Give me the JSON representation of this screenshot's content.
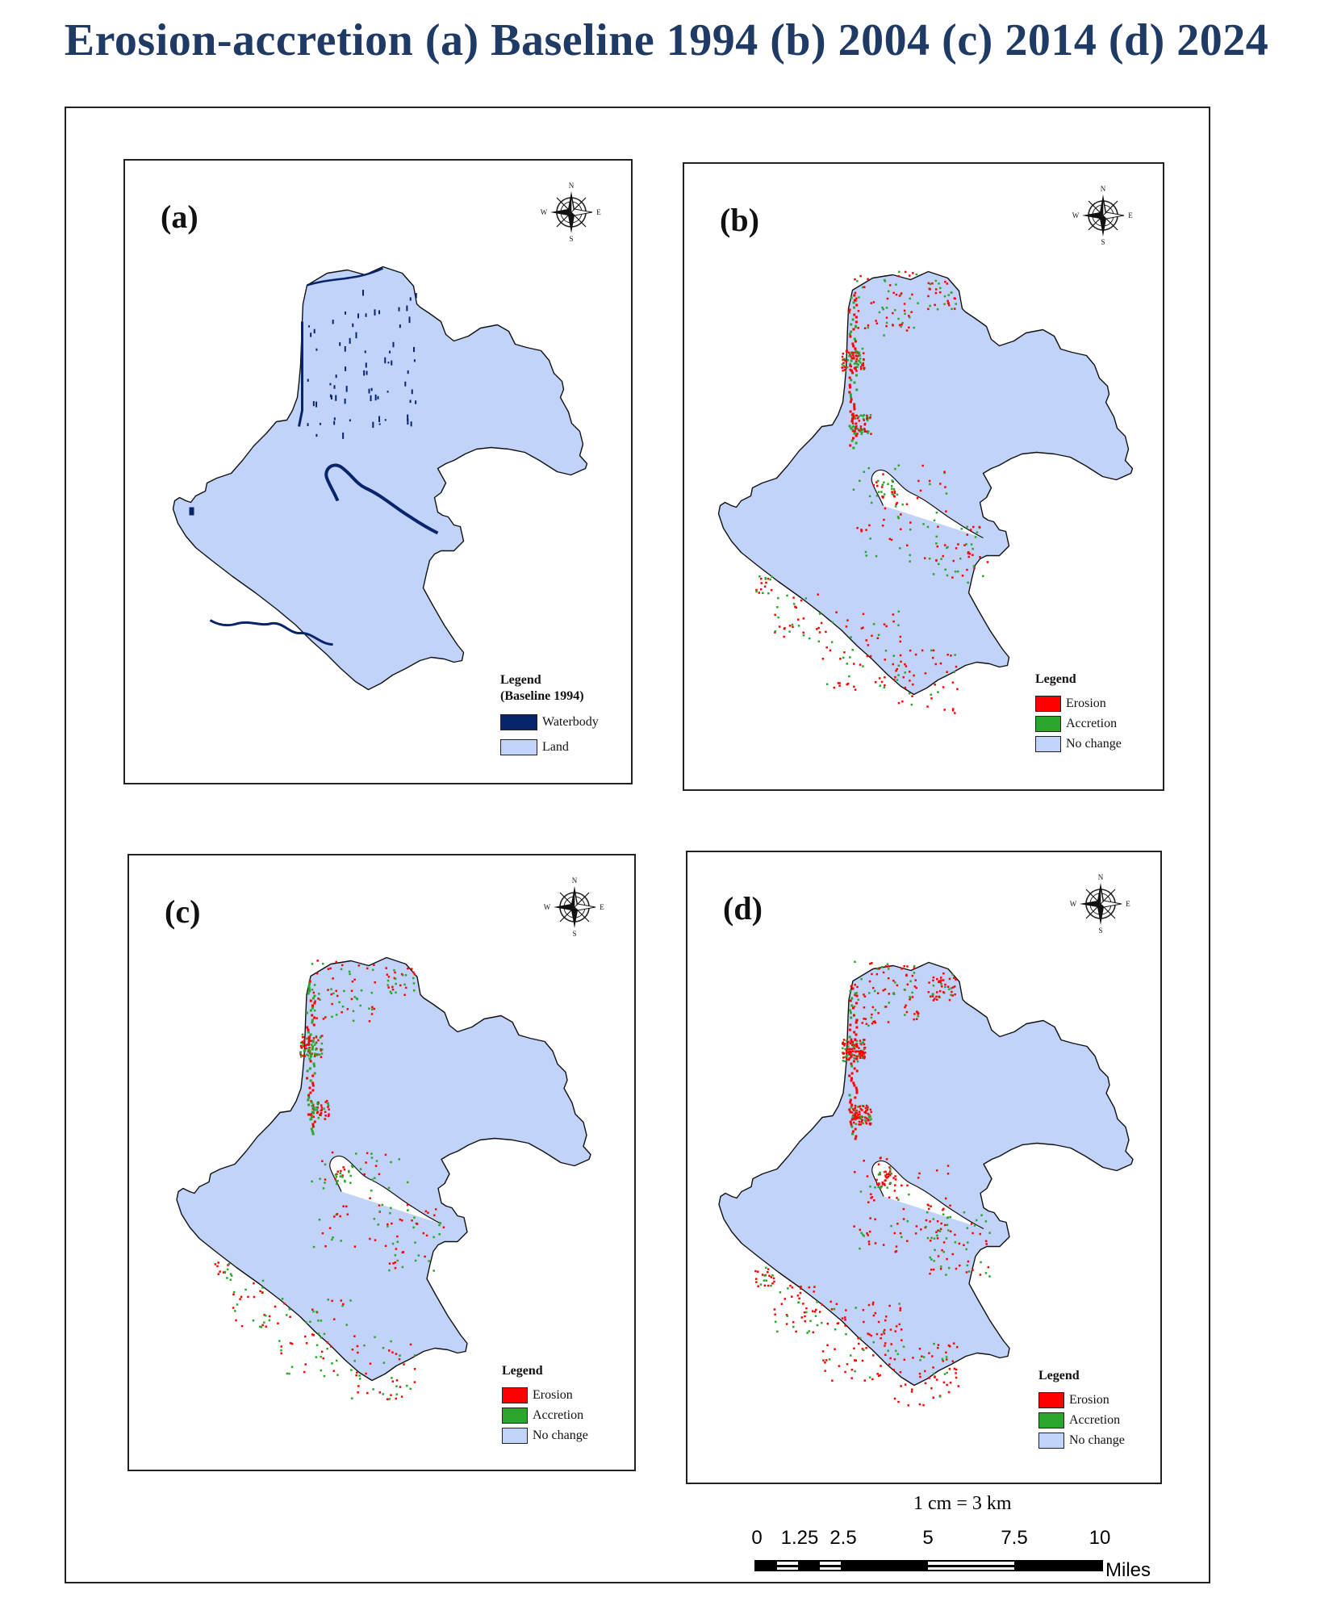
{
  "title": "Erosion-accretion (a) Baseline 1994 (b) 2004 (c) 2014 (d) 2024",
  "colors": {
    "land": "#c2d3f9",
    "waterbody": "#08246b",
    "erosion": "#ff0000",
    "accretion": "#2ba52b",
    "no_change": "#c2d3f9"
  },
  "compass": {
    "n": "N",
    "s": "S",
    "e": "E",
    "w": "W"
  },
  "panels": [
    {
      "label": "(a)",
      "legend": {
        "title": "Legend",
        "subtitle": "(Baseline 1994)",
        "items": [
          {
            "label": "Waterbody",
            "color": "#08246b"
          },
          {
            "label": "Land",
            "color": "#c2d3f9"
          }
        ]
      }
    },
    {
      "label": "(b)",
      "legend": {
        "title": "Legend",
        "items": [
          {
            "label": "Erosion",
            "color": "#ff0000"
          },
          {
            "label": "Accretion",
            "color": "#2ba52b"
          },
          {
            "label": "No change",
            "color": "#c2d3f9"
          }
        ]
      }
    },
    {
      "label": "(c)",
      "legend": {
        "title": "Legend",
        "items": [
          {
            "label": "Erosion",
            "color": "#ff0000"
          },
          {
            "label": "Accretion",
            "color": "#2ba52b"
          },
          {
            "label": "No change",
            "color": "#c2d3f9"
          }
        ]
      }
    },
    {
      "label": "(d)",
      "legend": {
        "title": "Legend",
        "items": [
          {
            "label": "Erosion",
            "color": "#ff0000"
          },
          {
            "label": "Accretion",
            "color": "#2ba52b"
          },
          {
            "label": "No change",
            "color": "#c2d3f9"
          }
        ]
      }
    }
  ],
  "scale_bar": {
    "ratio": "1 cm = 3 km",
    "ticks": [
      "0",
      "1.25",
      "2.5",
      "5",
      "7.5",
      "10"
    ],
    "units": "Miles"
  }
}
